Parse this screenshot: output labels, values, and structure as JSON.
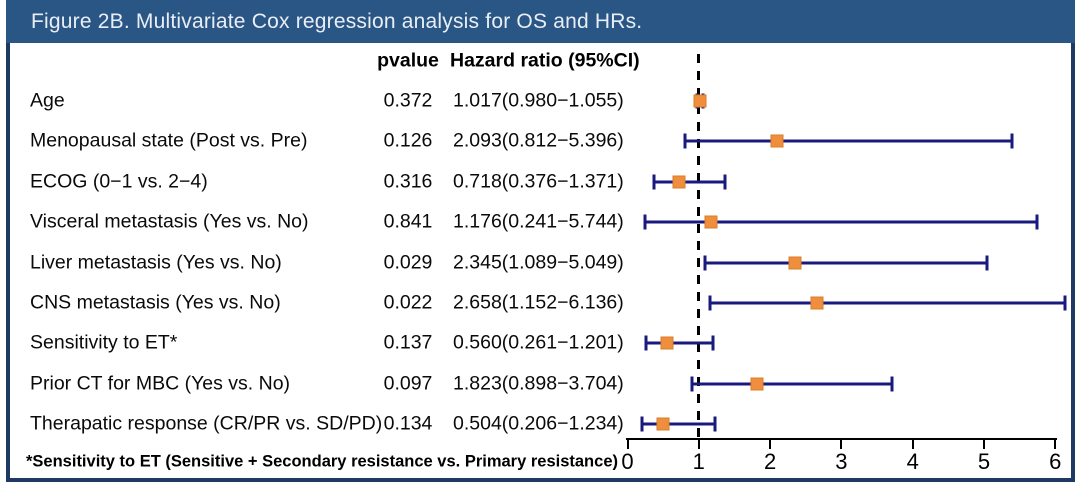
{
  "figure": {
    "title": "Figure 2B. Multivariate Cox regression analysis for OS and HRs.",
    "footnote": "*Sensitivity to ET (Sensitive + Secondary resistance vs. Primary resistance)"
  },
  "table": {
    "columns": {
      "pvalue": "pvalue",
      "hazard": "Hazard ratio (95%CI)"
    },
    "rows": [
      {
        "label": "Age",
        "pvalue": "0.372",
        "ci": "1.017(0.980−1.055)"
      },
      {
        "label": "Menopausal state (Post vs. Pre)",
        "pvalue": "0.126",
        "ci": "2.093(0.812−5.396)"
      },
      {
        "label": "ECOG (0−1 vs. 2−4)",
        "pvalue": "0.316",
        "ci": "0.718(0.376−1.371)"
      },
      {
        "label": "Visceral metastasis (Yes vs. No)",
        "pvalue": "0.841",
        "ci": "1.176(0.241−5.744)"
      },
      {
        "label": "Liver metastasis (Yes vs. No)",
        "pvalue": "0.029",
        "ci": "2.345(1.089−5.049)"
      },
      {
        "label": "CNS metastasis (Yes vs. No)",
        "pvalue": "0.022",
        "ci": "2.658(1.152−6.136)"
      },
      {
        "label": "Sensitivity to ET*",
        "pvalue": "0.137",
        "ci": "0.560(0.261−1.201)"
      },
      {
        "label": "Prior CT for MBC (Yes vs. No)",
        "pvalue": "0.097",
        "ci": "1.823(0.898−3.704)"
      },
      {
        "label": "Therapatic response (CR/PR vs. SD/PD)",
        "pvalue": "0.134",
        "ci": "0.504(0.206−1.234)"
      }
    ]
  },
  "chart_data": {
    "type": "scatter",
    "subtype": "forest-plot",
    "title": "Figure 2B. Multivariate Cox regression analysis for OS and HRs.",
    "xlabel": "Hazard ratio",
    "xlim": [
      0,
      6.2
    ],
    "x_ticks": [
      "0",
      "1",
      "2",
      "3",
      "4",
      "5",
      "6"
    ],
    "reference_line_x": 1,
    "grid": false,
    "points": [
      {
        "label": "Age",
        "hr": 1.017,
        "low": 0.98,
        "high": 1.055,
        "pvalue": 0.372
      },
      {
        "label": "Menopausal state (Post vs. Pre)",
        "hr": 2.093,
        "low": 0.812,
        "high": 5.396,
        "pvalue": 0.126
      },
      {
        "label": "ECOG (0−1 vs. 2−4)",
        "hr": 0.718,
        "low": 0.376,
        "high": 1.371,
        "pvalue": 0.316
      },
      {
        "label": "Visceral metastasis (Yes vs. No)",
        "hr": 1.176,
        "low": 0.241,
        "high": 5.744,
        "pvalue": 0.841
      },
      {
        "label": "Liver metastasis (Yes vs. No)",
        "hr": 2.345,
        "low": 1.089,
        "high": 5.049,
        "pvalue": 0.029
      },
      {
        "label": "CNS metastasis (Yes vs. No)",
        "hr": 2.658,
        "low": 1.152,
        "high": 6.136,
        "pvalue": 0.022
      },
      {
        "label": "Sensitivity to ET*",
        "hr": 0.56,
        "low": 0.261,
        "high": 1.201,
        "pvalue": 0.137
      },
      {
        "label": "Prior CT for MBC (Yes vs. No)",
        "hr": 1.823,
        "low": 0.898,
        "high": 3.704,
        "pvalue": 0.097
      },
      {
        "label": "Therapatic response (CR/PR vs. SD/PD)",
        "hr": 0.504,
        "low": 0.206,
        "high": 1.234,
        "pvalue": 0.134
      }
    ]
  },
  "colors": {
    "title_bar": "#2a5686",
    "frame_border": "#1e3a62",
    "error_bar": "#1a1a7e",
    "marker": "#ef8f3e",
    "marker_edge": "#d87c28",
    "reference_line": "#000000",
    "text": "#000000"
  }
}
